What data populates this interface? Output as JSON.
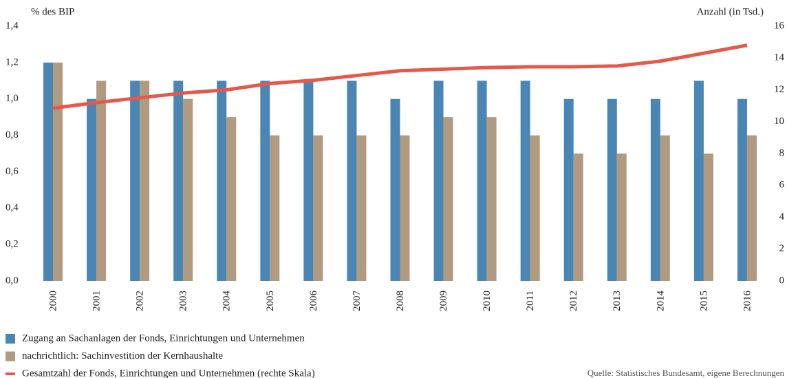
{
  "chart_data": {
    "type": "bar",
    "y_label": "% des BIP",
    "y2_label": "Anzahl (in Tsd.)",
    "source": "Quelle: Statistisches Bundesamt, eigene Berechnungen",
    "categories": [
      "2000",
      "2001",
      "2002",
      "2003",
      "2004",
      "2005",
      "2006",
      "2007",
      "2008",
      "2009",
      "2010",
      "2011",
      "2012",
      "2013",
      "2014",
      "2015",
      "2016"
    ],
    "series": [
      {
        "name": "Zugang an Sachanlagen der Fonds, Einrichtungen und Unternehmen",
        "color": "#4a86b4",
        "type": "bar",
        "values": [
          1.2,
          1.0,
          1.1,
          1.1,
          1.1,
          1.1,
          1.1,
          1.1,
          1.0,
          1.1,
          1.1,
          1.1,
          1.0,
          1.0,
          1.0,
          1.1,
          1.0
        ]
      },
      {
        "name": "nachrichtlich: Sachinvestition der Kernhaushalte",
        "color": "#b09a80",
        "type": "bar",
        "values": [
          1.2,
          1.1,
          1.1,
          1.0,
          0.9,
          0.8,
          0.8,
          0.8,
          0.8,
          0.9,
          0.9,
          0.8,
          0.7,
          0.7,
          0.8,
          0.7,
          0.8
        ]
      },
      {
        "name": "Gesamtzahl der Fonds, Einrichtungen und Unternehmen (rechte Skala)",
        "color": "#e5584a",
        "type": "line",
        "axis": "y2",
        "values": [
          10.85,
          11.2,
          11.5,
          11.8,
          12.0,
          12.4,
          12.6,
          12.9,
          13.2,
          13.3,
          13.4,
          13.45,
          13.45,
          13.5,
          13.8,
          14.3,
          14.8
        ]
      }
    ],
    "ylim": [
      0,
      1.4
    ],
    "yticks": [
      {
        "value": 0,
        "label": "0,0"
      },
      {
        "value": 0.2,
        "label": "0,2"
      },
      {
        "value": 0.4,
        "label": "0,4"
      },
      {
        "value": 0.6,
        "label": "0,6"
      },
      {
        "value": 0.8,
        "label": "0,8"
      },
      {
        "value": 1.0,
        "label": "1,0"
      },
      {
        "value": 1.2,
        "label": "1,2"
      },
      {
        "value": 1.4,
        "label": "1,4"
      }
    ],
    "y2lim": [
      0,
      16
    ],
    "y2ticks": [
      0,
      2,
      4,
      6,
      8,
      10,
      12,
      14,
      16
    ],
    "grid": false
  }
}
